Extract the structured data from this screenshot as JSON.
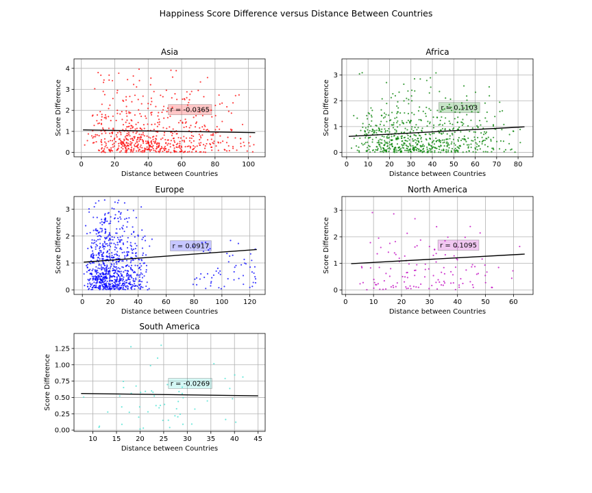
{
  "figure": {
    "suptitle": "Happiness Score Difference versus Distance Between Countries"
  },
  "chart_data": [
    {
      "type": "scatter",
      "title": "Asia",
      "xlabel": "Distance between Countries",
      "ylabel": "Score Difference",
      "xlim": [
        -4.4,
        110
      ],
      "ylim": [
        -0.21,
        4.45
      ],
      "xticks": [
        0,
        20,
        40,
        60,
        80,
        100
      ],
      "xtick_labels": [
        "0",
        "20",
        "40",
        "60",
        "80",
        "100"
      ],
      "yticks": [
        0,
        1,
        2,
        3,
        4
      ],
      "ytick_labels": [
        "0",
        "1",
        "2",
        "3",
        "4"
      ],
      "grid": true,
      "color": "#ff0000",
      "annotation": {
        "text": "r = -0.0365",
        "x": 52,
        "y": 2.05,
        "box_color": "#ff0000"
      },
      "trendline": {
        "x": [
          1,
          104
        ],
        "y": [
          1.07,
          0.94
        ]
      },
      "point_cloud": {
        "n": 650,
        "x_range": [
          2,
          105
        ],
        "x_mode": 25,
        "y_range": [
          0,
          4.2
        ],
        "y_scale": 0.95,
        "seed": 11
      }
    },
    {
      "type": "scatter",
      "title": "Africa",
      "xlabel": "Distance between Countries",
      "ylabel": "Score Difference",
      "xlim": [
        -2.2,
        87
      ],
      "ylim": [
        -0.17,
        3.62
      ],
      "xticks": [
        0,
        10,
        20,
        30,
        40,
        50,
        60,
        70,
        80
      ],
      "xtick_labels": [
        "0",
        "10",
        "20",
        "30",
        "40",
        "50",
        "60",
        "70",
        "80"
      ],
      "yticks": [
        0,
        1,
        2,
        3
      ],
      "ytick_labels": [
        "0",
        "1",
        "2",
        "3"
      ],
      "grid": true,
      "color": "#008000",
      "annotation": {
        "text": "r = 0.1103",
        "x": 43,
        "y": 1.75,
        "box_color": "#008000"
      },
      "trendline": {
        "x": [
          1,
          83
        ],
        "y": [
          0.62,
          0.99
        ]
      },
      "point_cloud": {
        "n": 700,
        "x_range": [
          1,
          83
        ],
        "x_mode": 22,
        "y_range": [
          0,
          3.45
        ],
        "y_scale": 0.75,
        "seed": 23
      }
    },
    {
      "type": "scatter",
      "title": "Europe",
      "xlabel": "Distance between Countries",
      "ylabel": "Score Difference",
      "xlim": [
        -6,
        131
      ],
      "ylim": [
        -0.17,
        3.47
      ],
      "xticks": [
        0,
        20,
        40,
        60,
        80,
        100,
        120
      ],
      "xtick_labels": [
        "0",
        "20",
        "40",
        "60",
        "80",
        "100",
        "120"
      ],
      "yticks": [
        0,
        1,
        2,
        3
      ],
      "ytick_labels": [
        "0",
        "1",
        "2",
        "3"
      ],
      "grid": true,
      "color": "#0000ff",
      "annotation": {
        "text": "r = 0.0917",
        "x": 63,
        "y": 1.65,
        "box_color": "#0000ff"
      },
      "trendline": {
        "x": [
          1,
          125
        ],
        "y": [
          1.03,
          1.5
        ]
      },
      "point_cloud": {
        "n": 800,
        "x_range": [
          1,
          50
        ],
        "x_mode": 14,
        "y_range": [
          0,
          3.35
        ],
        "y_scale": 1.15,
        "seed": 37,
        "extra_cluster": {
          "n": 60,
          "x_range": [
            78,
            125
          ],
          "y_range": [
            0,
            1.9
          ]
        }
      }
    },
    {
      "type": "scatter",
      "title": "North America",
      "xlabel": "Distance between Countries",
      "ylabel": "Score Difference",
      "xlim": [
        -1.3,
        67
      ],
      "ylim": [
        -0.17,
        3.52
      ],
      "xticks": [
        0,
        10,
        20,
        30,
        40,
        50,
        60
      ],
      "xtick_labels": [
        "0",
        "10",
        "20",
        "30",
        "40",
        "50",
        "60"
      ],
      "yticks": [
        0,
        1,
        2,
        3
      ],
      "ytick_labels": [
        "0",
        "1",
        "2",
        "3"
      ],
      "grid": true,
      "color": "#bf00bf",
      "annotation": {
        "text": "r = 0.1095",
        "x": 33,
        "y": 1.7,
        "box_color": "#bf00bf"
      },
      "trendline": {
        "x": [
          2,
          64
        ],
        "y": [
          0.99,
          1.35
        ]
      },
      "point_cloud": {
        "n": 130,
        "x_range": [
          2,
          64
        ],
        "x_mode": 18,
        "y_range": [
          0,
          3.4
        ],
        "y_scale": 1.0,
        "seed": 53
      }
    },
    {
      "type": "scatter",
      "title": "South America",
      "xlabel": "Distance between Countries",
      "ylabel": "Score Difference",
      "xlim": [
        6,
        46.5
      ],
      "ylim": [
        -0.02,
        1.48
      ],
      "xticks": [
        10,
        15,
        20,
        25,
        30,
        35,
        40,
        45
      ],
      "xtick_labels": [
        "10",
        "15",
        "20",
        "25",
        "30",
        "35",
        "40",
        "45"
      ],
      "yticks": [
        0,
        0.25,
        0.5,
        0.75,
        1.0,
        1.25
      ],
      "ytick_labels": [
        "0.00",
        "0.25",
        "0.50",
        "0.75",
        "1.00",
        "1.25"
      ],
      "grid": true,
      "color": "#40e0d0",
      "annotation": {
        "text": "r = -0.0269",
        "x": 26,
        "y": 0.72,
        "box_color": "#40e0d0"
      },
      "trendline": {
        "x": [
          7.5,
          45
        ],
        "y": [
          0.56,
          0.525
        ]
      },
      "point_cloud": {
        "n": 55,
        "x_range": [
          7,
          45
        ],
        "x_mode": 26,
        "y_range": [
          0,
          1.4
        ],
        "y_scale": 0.5,
        "seed": 71
      }
    }
  ]
}
